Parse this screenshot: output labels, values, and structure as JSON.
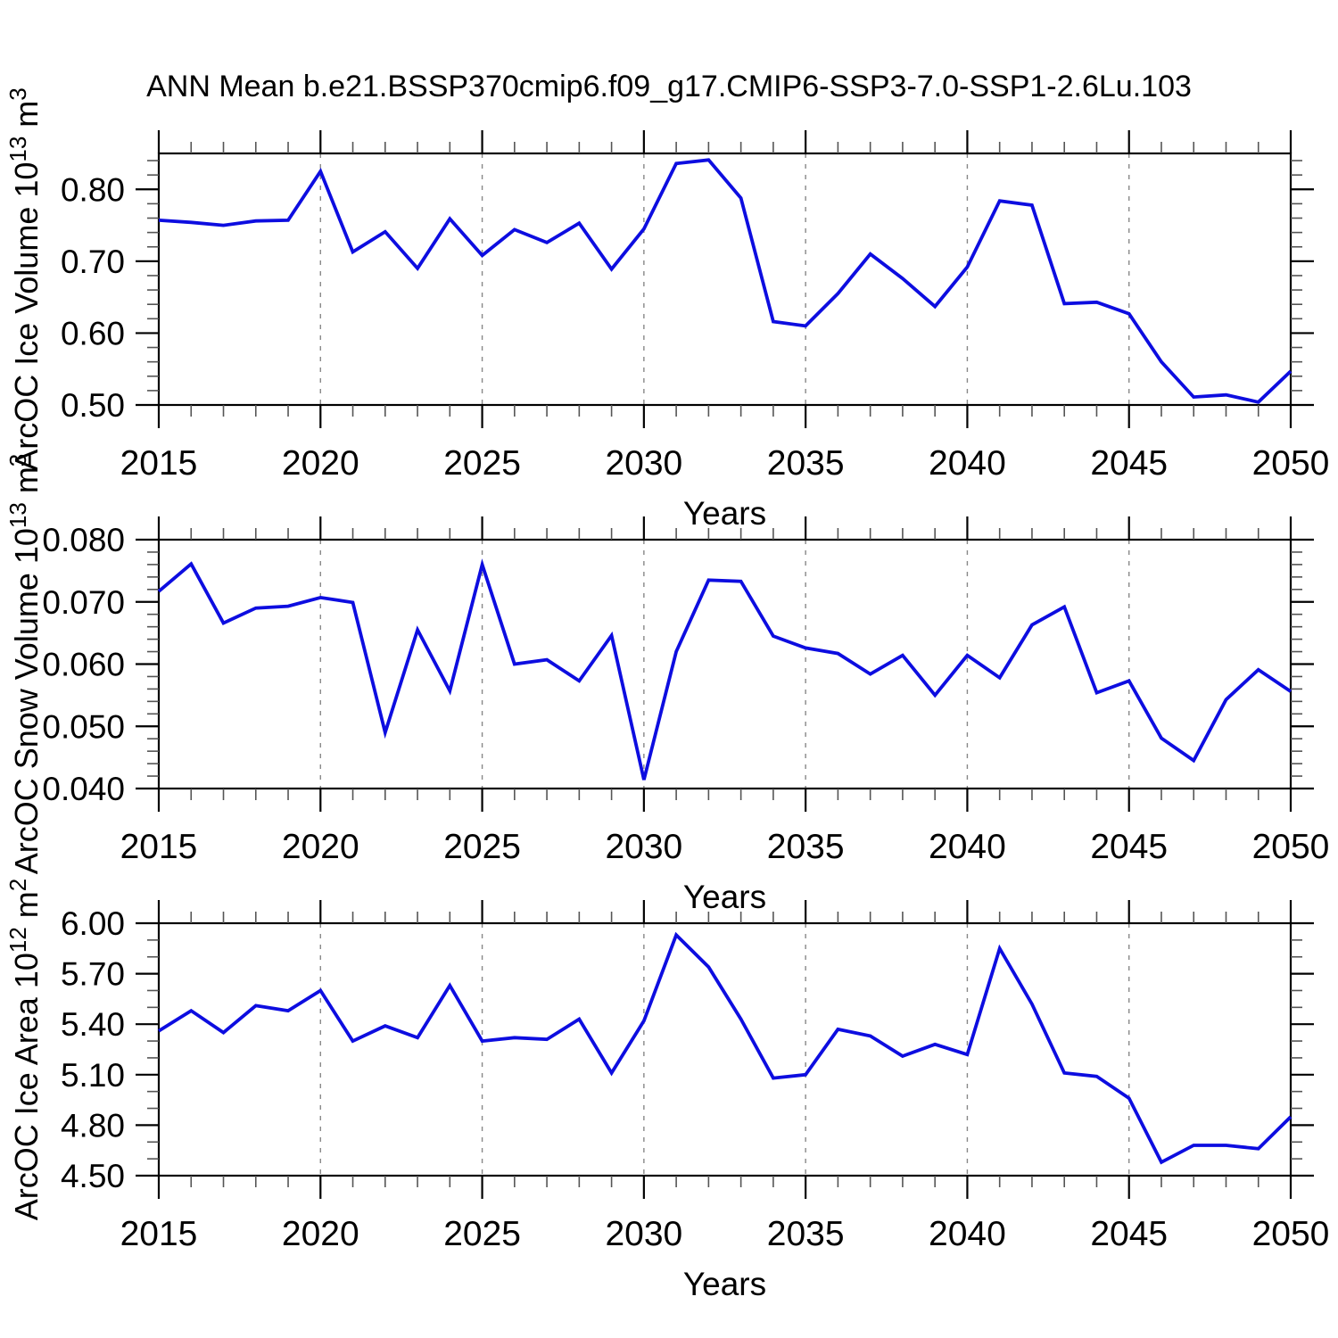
{
  "title": "ANN Mean b.e21.BSSP370cmip6.f09_g17.CMIP6-SSP3-7.0-SSP1-2.6Lu.103",
  "colors": {
    "line": "#0d0de0",
    "axis": "#000000",
    "minor_tick": "#555555",
    "grid": "#888888",
    "background": "#ffffff"
  },
  "x_axis": {
    "label": "Years",
    "range": [
      2015,
      2050
    ],
    "major_ticks": [
      2015,
      2020,
      2025,
      2030,
      2035,
      2040,
      2045,
      2050
    ],
    "major_tick_labels": [
      "2015",
      "2020",
      "2025",
      "2030",
      "2035",
      "2040",
      "2045",
      "2050"
    ],
    "minor_step": 1,
    "grid_years": [
      2020,
      2025,
      2030,
      2035,
      2040,
      2045
    ]
  },
  "chart_data": [
    {
      "id": "ice-volume",
      "type": "line",
      "ylabel_parts": [
        {
          "t": "ArcOC Ice Volume 10",
          "sup": false
        },
        {
          "t": "13",
          "sup": true
        },
        {
          "t": " m",
          "sup": false
        },
        {
          "t": "3",
          "sup": true
        }
      ],
      "xlabel": "Years",
      "ylim": [
        0.5,
        0.85
      ],
      "yticks": [
        0.5,
        0.6,
        0.7,
        0.8
      ],
      "ytick_labels": [
        "0.50",
        "0.60",
        "0.70",
        "0.80"
      ],
      "y_minor_step": 0.02,
      "grid": "x-dashed",
      "legend": "none",
      "x": [
        2015,
        2016,
        2017,
        2018,
        2019,
        2020,
        2021,
        2022,
        2023,
        2024,
        2025,
        2026,
        2027,
        2028,
        2029,
        2030,
        2031,
        2032,
        2033,
        2034,
        2035,
        2036,
        2037,
        2038,
        2039,
        2040,
        2041,
        2042,
        2043,
        2044,
        2045,
        2046,
        2047,
        2048,
        2049,
        2050
      ],
      "values": [
        0.757,
        0.754,
        0.75,
        0.756,
        0.757,
        0.825,
        0.713,
        0.741,
        0.69,
        0.759,
        0.708,
        0.744,
        0.726,
        0.753,
        0.689,
        0.745,
        0.836,
        0.841,
        0.788,
        0.616,
        0.61,
        0.655,
        0.71,
        0.676,
        0.637,
        0.692,
        0.784,
        0.778,
        0.641,
        0.643,
        0.627,
        0.56,
        0.511,
        0.514,
        0.504,
        0.547
      ]
    },
    {
      "id": "snow-volume",
      "type": "line",
      "ylabel_parts": [
        {
          "t": "ArcOC Snow Volume 10",
          "sup": false
        },
        {
          "t": "13",
          "sup": true
        },
        {
          "t": " m",
          "sup": false
        },
        {
          "t": "3",
          "sup": true
        }
      ],
      "xlabel": "Years",
      "ylim": [
        0.04,
        0.08
      ],
      "yticks": [
        0.04,
        0.05,
        0.06,
        0.07,
        0.08
      ],
      "ytick_labels": [
        "0.040",
        "0.050",
        "0.060",
        "0.070",
        "0.080"
      ],
      "y_minor_step": 0.002,
      "grid": "x-dashed",
      "legend": "none",
      "x": [
        2015,
        2016,
        2017,
        2018,
        2019,
        2020,
        2021,
        2022,
        2023,
        2024,
        2025,
        2026,
        2027,
        2028,
        2029,
        2030,
        2031,
        2032,
        2033,
        2034,
        2035,
        2036,
        2037,
        2038,
        2039,
        2040,
        2041,
        2042,
        2043,
        2044,
        2045,
        2046,
        2047,
        2048,
        2049,
        2050
      ],
      "values": [
        0.0717,
        0.0761,
        0.0666,
        0.069,
        0.0693,
        0.0707,
        0.0699,
        0.049,
        0.0655,
        0.0557,
        0.076,
        0.06,
        0.0607,
        0.0573,
        0.0646,
        0.0414,
        0.062,
        0.0735,
        0.0733,
        0.0645,
        0.0626,
        0.0617,
        0.0584,
        0.0614,
        0.055,
        0.0614,
        0.0578,
        0.0663,
        0.0692,
        0.0554,
        0.0573,
        0.0481,
        0.0445,
        0.0543,
        0.0591,
        0.0556
      ]
    },
    {
      "id": "ice-area",
      "type": "line",
      "ylabel_parts": [
        {
          "t": "ArcOC Ice Area 10",
          "sup": false
        },
        {
          "t": "12",
          "sup": true
        },
        {
          "t": " m",
          "sup": false
        },
        {
          "t": "2",
          "sup": true
        }
      ],
      "xlabel": "Years",
      "ylim": [
        4.5,
        6.0
      ],
      "yticks": [
        4.5,
        4.8,
        5.1,
        5.4,
        5.7,
        6.0
      ],
      "ytick_labels": [
        "4.50",
        "4.80",
        "5.10",
        "5.40",
        "5.70",
        "6.00"
      ],
      "y_minor_step": 0.1,
      "grid": "x-dashed",
      "legend": "none",
      "x": [
        2015,
        2016,
        2017,
        2018,
        2019,
        2020,
        2021,
        2022,
        2023,
        2024,
        2025,
        2026,
        2027,
        2028,
        2029,
        2030,
        2031,
        2032,
        2033,
        2034,
        2035,
        2036,
        2037,
        2038,
        2039,
        2040,
        2041,
        2042,
        2043,
        2044,
        2045,
        2046,
        2047,
        2048,
        2049,
        2050
      ],
      "values": [
        5.36,
        5.48,
        5.35,
        5.51,
        5.48,
        5.6,
        5.3,
        5.39,
        5.32,
        5.63,
        5.3,
        5.32,
        5.31,
        5.43,
        5.11,
        5.42,
        5.93,
        5.74,
        5.43,
        5.08,
        5.1,
        5.37,
        5.33,
        5.21,
        5.28,
        5.22,
        5.85,
        5.52,
        5.11,
        5.09,
        4.96,
        4.58,
        4.68,
        4.68,
        4.66,
        4.85
      ]
    }
  ]
}
